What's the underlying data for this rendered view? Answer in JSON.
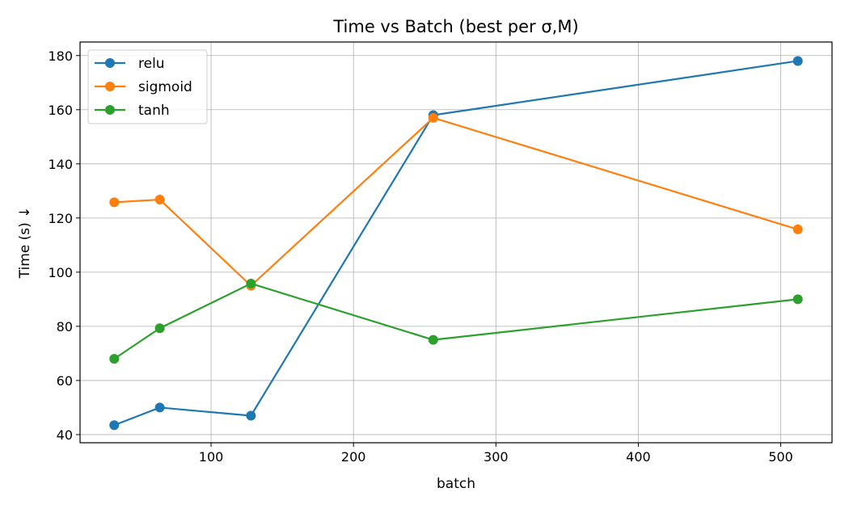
{
  "chart_data": {
    "type": "line",
    "title": "Time vs Batch (best per σ,M)",
    "xlabel": "batch",
    "ylabel": "Time (s) ↓",
    "xlim": [
      8,
      536
    ],
    "ylim": [
      37,
      185
    ],
    "xticks": [
      100,
      200,
      300,
      400,
      500
    ],
    "yticks": [
      40,
      60,
      80,
      100,
      120,
      140,
      160,
      180
    ],
    "grid": true,
    "legend_position": "top-left",
    "x": [
      32,
      64,
      128,
      256,
      512
    ],
    "series": [
      {
        "name": "relu",
        "color": "#1f77b4",
        "values": [
          43.5,
          50.0,
          47.0,
          158.0,
          178.0
        ]
      },
      {
        "name": "sigmoid",
        "color": "#ff7f0e",
        "values": [
          125.8,
          126.8,
          95.0,
          157.0,
          115.8
        ]
      },
      {
        "name": "tanh",
        "color": "#2ca02c",
        "values": [
          68.0,
          79.3,
          95.8,
          75.0,
          90.0
        ]
      }
    ]
  }
}
